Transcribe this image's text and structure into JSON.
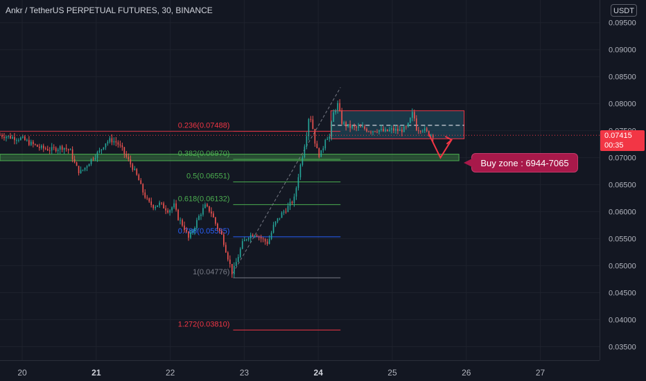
{
  "header": {
    "title": "Ankr / TetherUS PERPETUAL FUTURES, 30, BINANCE",
    "currency": "USDT"
  },
  "price_tag": {
    "price": "0.07415",
    "countdown": "00:35"
  },
  "callout": {
    "text": "Buy zone : 6944-7065"
  },
  "colors": {
    "background": "#131722",
    "up": "#26a69a",
    "down": "#ef5350",
    "fib_red": "#f23645",
    "fib_green": "#4caf50",
    "fib_blue": "#2962ff",
    "fib_gray": "#787b86",
    "zone": "#2f5c5f",
    "callout": "#a8194a"
  },
  "chart_data": {
    "type": "line",
    "x_ticks": [
      "20",
      "21",
      "22",
      "23",
      "24",
      "25",
      "26",
      "27"
    ],
    "y_ticks": [
      "0.09500",
      "0.09000",
      "0.08500",
      "0.08000",
      "0.07500",
      "0.07000",
      "0.06500",
      "0.06000",
      "0.05500",
      "0.05000",
      "0.04500",
      "0.04000",
      "0.03500"
    ],
    "ylim": [
      0.0325,
      0.0992
    ],
    "xlim": [
      19.7,
      27.8
    ],
    "series": [
      {
        "values": [
          [
            19.7,
            0.0742
          ],
          [
            19.85,
            0.0738
          ],
          [
            20.0,
            0.0735
          ],
          [
            20.1,
            0.0727
          ],
          [
            20.25,
            0.0718
          ],
          [
            20.4,
            0.0715
          ],
          [
            20.55,
            0.072
          ],
          [
            20.65,
            0.0712
          ],
          [
            20.72,
            0.0685
          ],
          [
            20.78,
            0.0672
          ],
          [
            20.85,
            0.0682
          ],
          [
            20.95,
            0.07
          ],
          [
            21.05,
            0.0712
          ],
          [
            21.12,
            0.0728
          ],
          [
            21.2,
            0.0733
          ],
          [
            21.28,
            0.0728
          ],
          [
            21.35,
            0.0715
          ],
          [
            21.42,
            0.0698
          ],
          [
            21.5,
            0.068
          ],
          [
            21.57,
            0.066
          ],
          [
            21.62,
            0.064
          ],
          [
            21.7,
            0.0617
          ],
          [
            21.78,
            0.061
          ],
          [
            21.85,
            0.0615
          ],
          [
            21.92,
            0.0608
          ],
          [
            21.98,
            0.0602
          ],
          [
            22.05,
            0.0612
          ],
          [
            22.1,
            0.059
          ],
          [
            22.18,
            0.0573
          ],
          [
            22.25,
            0.055
          ],
          [
            22.32,
            0.057
          ],
          [
            22.4,
            0.0595
          ],
          [
            22.47,
            0.061
          ],
          [
            22.55,
            0.06
          ],
          [
            22.62,
            0.0575
          ],
          [
            22.7,
            0.0555
          ],
          [
            22.75,
            0.053
          ],
          [
            22.8,
            0.0505
          ],
          [
            22.84,
            0.0485
          ],
          [
            22.9,
            0.051
          ],
          [
            22.97,
            0.054
          ],
          [
            23.05,
            0.0555
          ],
          [
            23.15,
            0.056
          ],
          [
            23.25,
            0.0548
          ],
          [
            23.32,
            0.0542
          ],
          [
            23.4,
            0.0575
          ],
          [
            23.5,
            0.0595
          ],
          [
            23.6,
            0.061
          ],
          [
            23.68,
            0.0625
          ],
          [
            23.72,
            0.066
          ],
          [
            23.78,
            0.07
          ],
          [
            23.85,
            0.075
          ],
          [
            23.88,
            0.0785
          ],
          [
            23.92,
            0.076
          ],
          [
            23.96,
            0.0725
          ],
          [
            24.0,
            0.0705
          ],
          [
            24.05,
            0.071
          ],
          [
            24.1,
            0.074
          ],
          [
            24.15,
            0.0738
          ],
          [
            24.2,
            0.078
          ],
          [
            24.26,
            0.08
          ],
          [
            24.32,
            0.0765
          ],
          [
            24.4,
            0.0758
          ],
          [
            24.5,
            0.0755
          ],
          [
            24.6,
            0.0755
          ],
          [
            24.7,
            0.075
          ],
          [
            24.8,
            0.0752
          ],
          [
            24.9,
            0.0748
          ],
          [
            25.0,
            0.0752
          ],
          [
            25.1,
            0.075
          ],
          [
            25.2,
            0.0755
          ],
          [
            25.28,
            0.0785
          ],
          [
            25.33,
            0.0752
          ],
          [
            25.4,
            0.0755
          ],
          [
            25.48,
            0.0745
          ],
          [
            25.55,
            0.0742
          ]
        ]
      }
    ],
    "fib_levels": [
      {
        "label": "0.236(0.07488)",
        "value": 0.07488,
        "color": "#f23645"
      },
      {
        "label": "0.382(0.06970)",
        "value": 0.0697,
        "color": "#4caf50"
      },
      {
        "label": "0.5(0.06551)",
        "value": 0.06551,
        "color": "#4caf50"
      },
      {
        "label": "0.618(0.06132)",
        "value": 0.06132,
        "color": "#4caf50"
      },
      {
        "label": "0.786(0.05535)",
        "value": 0.05535,
        "color": "#2962ff"
      },
      {
        "label": "1(0.04776)",
        "value": 0.04776,
        "color": "#787b86"
      },
      {
        "label": "1.272(0.03810)",
        "value": 0.0381,
        "color": "#f23645"
      }
    ],
    "fib_x_range": [
      22.85,
      24.3
    ],
    "buy_zone": {
      "low": 0.06944,
      "high": 0.07065,
      "x_from": 19.7,
      "x_to": 25.9
    },
    "range_box": {
      "low": 0.0735,
      "high": 0.0787,
      "x_from": 24.17,
      "x_to": 25.97,
      "mid": 0.076
    },
    "last_price": 0.07415,
    "trend_line": [
      [
        22.85,
        0.0487
      ],
      [
        24.3,
        0.083
      ]
    ],
    "arrow_path": [
      [
        25.49,
        0.0745
      ],
      [
        25.65,
        0.07
      ],
      [
        25.8,
        0.0733
      ]
    ]
  }
}
